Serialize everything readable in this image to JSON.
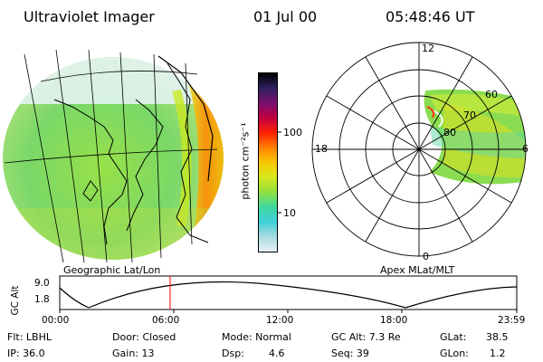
{
  "header": {
    "instrument": "Ultraviolet Imager",
    "date": "01 Jul 00",
    "time": "05:48:46 UT"
  },
  "geo_panel": {
    "caption": "Geographic Lat/Lon"
  },
  "colorbar": {
    "unit_label": "photon cm⁻²s⁻¹",
    "scale": "log",
    "ticks": [
      "100",
      "10"
    ],
    "colors": [
      "#e8f0f8",
      "#a8dce0",
      "#40d0d8",
      "#40d8a0",
      "#90e040",
      "#d8e820",
      "#f8c800",
      "#ff8000",
      "#ff2000",
      "#c00040",
      "#7a1070",
      "#302060",
      "#000000"
    ]
  },
  "polar_plot": {
    "caption": "Apex MLat/MLT",
    "mlt_labels": {
      "top": "12",
      "right": "6",
      "bottom": "0",
      "left": "18"
    },
    "lat_labels": [
      "60",
      "70",
      "80"
    ]
  },
  "altitude_plot": {
    "y_label": "GC Alt",
    "y_ticks": [
      "9.0",
      "1.8"
    ],
    "x_ticks": [
      "00:00",
      "06:00",
      "12:00",
      "18:00",
      "23:59"
    ],
    "current_time_fraction": 0.2415,
    "marker_color": "#ff0000"
  },
  "status": {
    "row1": {
      "flt": "Flt: LBHL",
      "door": "Door: Closed",
      "mode": "Mode: Normal",
      "gc_alt": "GC Alt: 7.3 Re",
      "glat_label": "GLat:",
      "glat_value": "38.5"
    },
    "row2": {
      "ip": "IP: 36.0",
      "gain": "Gain: 13",
      "dsp_label": "Dsp:",
      "dsp_value": "4.6",
      "seq": "Seq: 39",
      "glon_label": "GLon:",
      "glon_value": "1.2"
    }
  }
}
